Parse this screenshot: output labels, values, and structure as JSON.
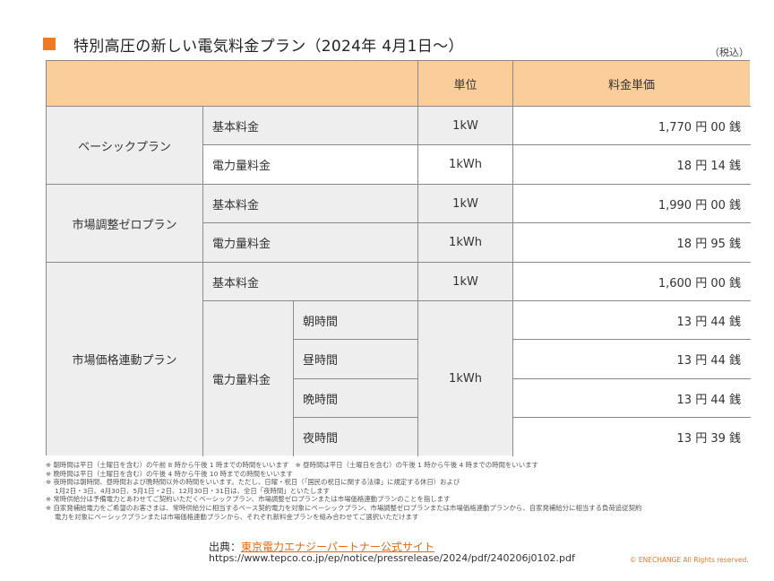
{
  "title": "特別高圧の新しい電気料金プラン（2024年 4月1日～）",
  "tax_note": "（税込）",
  "table": {
    "headers": {
      "unit": "単位",
      "price": "料金単価"
    },
    "basic": {
      "plan": "ベーシックプラン",
      "rows": [
        {
          "item": "基本料金",
          "unit": "1kW",
          "price": "1,770 円 00 銭"
        },
        {
          "item": "電力量料金",
          "unit": "1kWh",
          "price": "18 円 14 銭"
        }
      ]
    },
    "zero": {
      "plan": "市場調整ゼロプラン",
      "rows": [
        {
          "item": "基本料金",
          "unit": "1kW",
          "price": "1,990 円 00 銭"
        },
        {
          "item": "電力量料金",
          "unit": "1kWh",
          "price": "18 円 95 銭"
        }
      ]
    },
    "market": {
      "plan": "市場価格連動プラン",
      "base": {
        "item": "基本料金",
        "unit": "1kW",
        "price": "1,600 円 00 銭"
      },
      "energy_item": "電力量料金",
      "energy_unit": "1kWh",
      "periods": [
        {
          "name": "朝時間",
          "price": "13 円 44 銭"
        },
        {
          "name": "昼時間",
          "price": "13 円 44 銭"
        },
        {
          "name": "晩時間",
          "price": "13 円 44 銭"
        },
        {
          "name": "夜時間",
          "price": "13 円 39 銭"
        }
      ]
    }
  },
  "notes": [
    "※ 朝時間は平日（土曜日を含む）の午前 8 時から午後 1 時までの時間をいいます　※ 昼時間は平日（土曜日を含む）の午後 1 時から午後 4 時までの時間をいいます",
    "※ 晩時間は平日（土曜日を含む）の午後 4 時から午後 10 時までの時間をいいます",
    "※ 夜時間は朝時間、昼時間および晩時間以外の時間をいいます。ただし、日曜・祝日（「国民の祝日に関する法律」に規定する休日）および",
    "1月2日・3日、4月30日、5月1日・2日、12月30日・31日は、全日「夜時間」といたします",
    "※ 常時供給分は予備電力とあわせてご契約いただくベーシックプラン、市場調整ゼロプランまたは市場価格連動プランのことを指します",
    "※ 自家発補給電力をご希望のお客さまは、常時供給分に相当するベース契約電力を対象にベーシックプラン、市場調整ゼロプランまたは市場価格連動プランから、自家発補給分に相当する負荷追従契約",
    "電力を対象にベーシックプランまたは市場価格連動プランから、それぞれ新料金プランを組み合わせてご選択いただけます"
  ],
  "source": {
    "label": "出典：",
    "link_text": "東京電力エナジーパートナー公式サイト",
    "url": "https://www.tepco.co.jp/ep/notice/pressrelease/2024/pdf/240206j0102.pdf"
  },
  "copyright": "© ENECHANGE All Rights reserved."
}
